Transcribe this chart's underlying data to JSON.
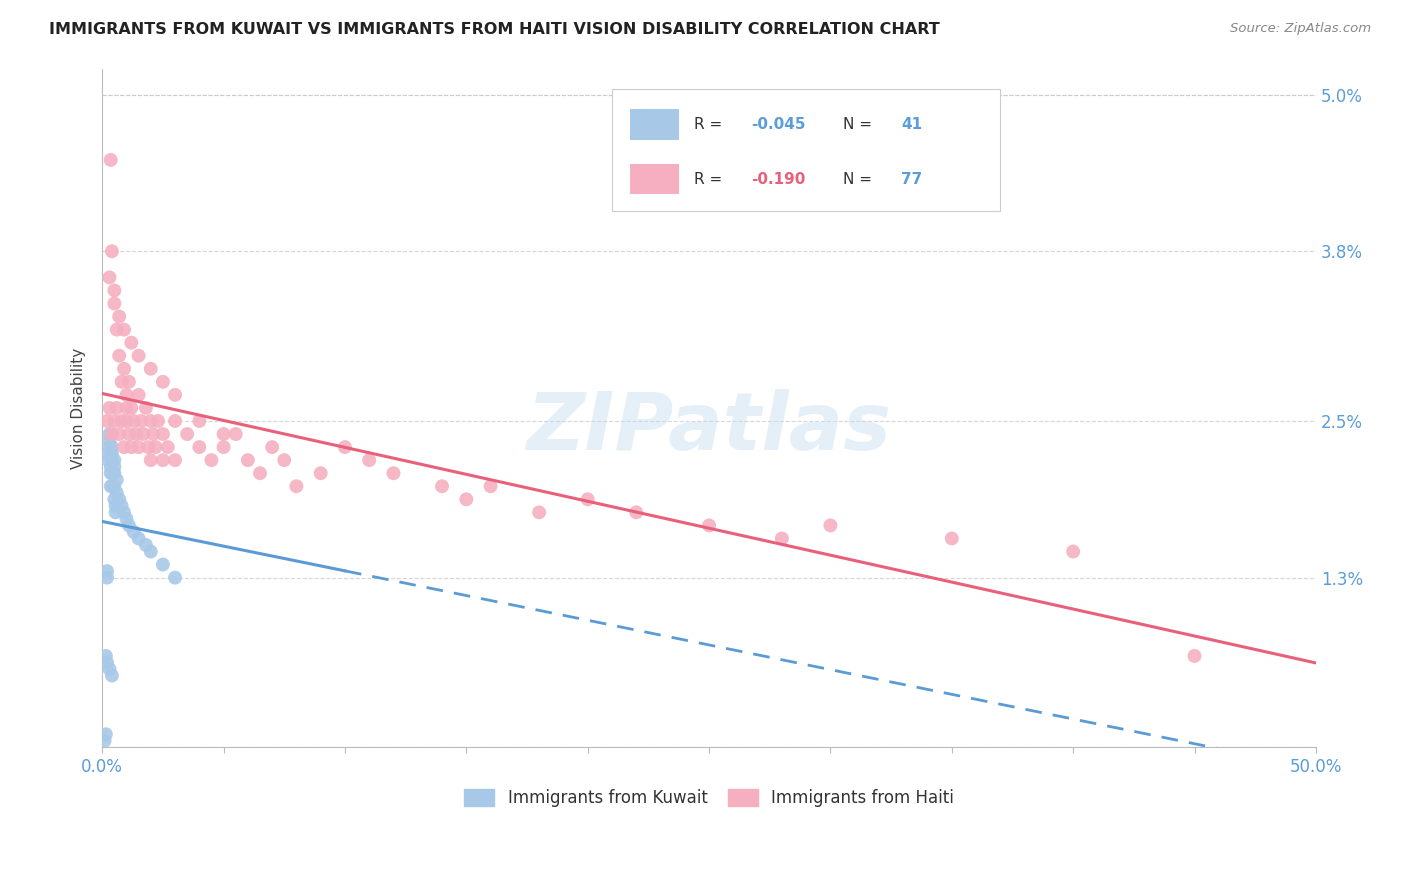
{
  "title": "IMMIGRANTS FROM KUWAIT VS IMMIGRANTS FROM HAITI VISION DISABILITY CORRELATION CHART",
  "source": "Source: ZipAtlas.com",
  "ylabel": "Vision Disability",
  "ytick_labels": [
    "",
    "1.3%",
    "2.5%",
    "3.8%",
    "5.0%"
  ],
  "ytick_values": [
    0.0,
    1.3,
    2.5,
    3.8,
    5.0
  ],
  "xlim": [
    0.0,
    50.0
  ],
  "ylim": [
    0.0,
    5.2
  ],
  "kuwait_R": -0.045,
  "kuwait_N": 41,
  "haiti_R": -0.19,
  "haiti_N": 77,
  "kuwait_color": "#a8c8e8",
  "haiti_color": "#f5afc0",
  "kuwait_line_color": "#5b9bd5",
  "haiti_line_color": "#e8607a",
  "watermark": "ZIPatlas",
  "legend_label_kuwait": "Immigrants from Kuwait",
  "legend_label_haiti": "Immigrants from Haiti",
  "kuwait_scatter_x": [
    0.1,
    0.15,
    0.2,
    0.2,
    0.25,
    0.25,
    0.3,
    0.3,
    0.3,
    0.35,
    0.35,
    0.35,
    0.4,
    0.4,
    0.4,
    0.45,
    0.45,
    0.5,
    0.5,
    0.5,
    0.5,
    0.5,
    0.55,
    0.55,
    0.6,
    0.6,
    0.7,
    0.8,
    0.9,
    1.0,
    1.1,
    1.3,
    1.5,
    1.8,
    2.0,
    2.5,
    3.0,
    0.15,
    0.2,
    0.3,
    0.4
  ],
  "kuwait_scatter_y": [
    0.05,
    0.1,
    1.3,
    1.35,
    2.2,
    2.25,
    2.3,
    2.35,
    2.4,
    2.0,
    2.1,
    2.15,
    2.2,
    2.25,
    2.3,
    2.0,
    2.1,
    1.9,
    2.0,
    2.1,
    2.15,
    2.2,
    1.8,
    1.85,
    1.95,
    2.05,
    1.9,
    1.85,
    1.8,
    1.75,
    1.7,
    1.65,
    1.6,
    1.55,
    1.5,
    1.4,
    1.3,
    0.7,
    0.65,
    0.6,
    0.55
  ],
  "haiti_scatter_x": [
    0.2,
    0.3,
    0.35,
    0.4,
    0.4,
    0.5,
    0.5,
    0.6,
    0.6,
    0.7,
    0.7,
    0.8,
    0.8,
    0.9,
    0.9,
    1.0,
    1.0,
    1.0,
    1.1,
    1.1,
    1.2,
    1.2,
    1.3,
    1.4,
    1.5,
    1.5,
    1.6,
    1.7,
    1.8,
    1.9,
    2.0,
    2.0,
    2.1,
    2.2,
    2.3,
    2.5,
    2.5,
    2.7,
    3.0,
    3.0,
    3.5,
    4.0,
    4.5,
    5.0,
    5.5,
    6.0,
    6.5,
    7.0,
    7.5,
    8.0,
    9.0,
    10.0,
    11.0,
    12.0,
    14.0,
    15.0,
    16.0,
    18.0,
    20.0,
    22.0,
    25.0,
    28.0,
    30.0,
    35.0,
    40.0,
    45.0,
    0.3,
    0.5,
    0.7,
    0.9,
    1.2,
    1.5,
    2.0,
    2.5,
    3.0,
    4.0,
    5.0
  ],
  "haiti_scatter_y": [
    2.5,
    2.6,
    4.5,
    3.8,
    2.4,
    3.5,
    2.5,
    3.2,
    2.6,
    3.0,
    2.4,
    2.8,
    2.5,
    2.9,
    2.3,
    2.7,
    2.5,
    2.6,
    2.8,
    2.4,
    2.6,
    2.3,
    2.5,
    2.4,
    2.7,
    2.3,
    2.5,
    2.4,
    2.6,
    2.3,
    2.5,
    2.2,
    2.4,
    2.3,
    2.5,
    2.4,
    2.2,
    2.3,
    2.5,
    2.2,
    2.4,
    2.3,
    2.2,
    2.3,
    2.4,
    2.2,
    2.1,
    2.3,
    2.2,
    2.0,
    2.1,
    2.3,
    2.2,
    2.1,
    2.0,
    1.9,
    2.0,
    1.8,
    1.9,
    1.8,
    1.7,
    1.6,
    1.7,
    1.6,
    1.5,
    0.7,
    3.6,
    3.4,
    3.3,
    3.2,
    3.1,
    3.0,
    2.9,
    2.8,
    2.7,
    2.5,
    2.4
  ]
}
